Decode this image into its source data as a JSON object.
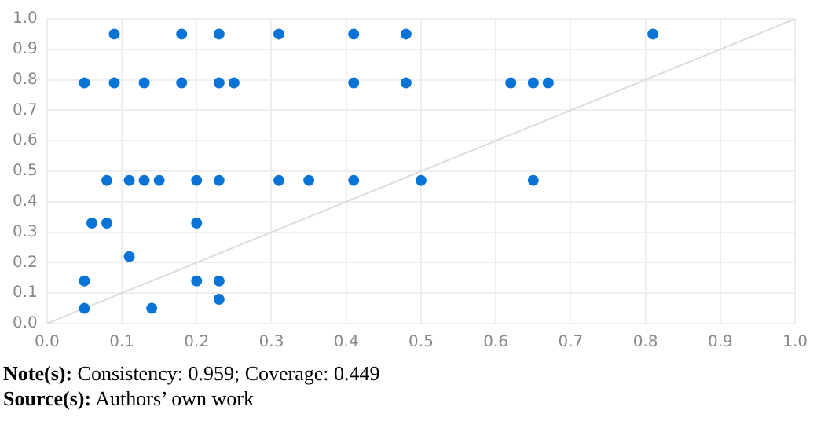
{
  "chart_data": {
    "type": "scatter",
    "series": [
      {
        "marker": "circle",
        "color": "#0a74d6",
        "x": [
          0.09,
          0.18,
          0.23,
          0.31,
          0.41,
          0.48,
          0.81,
          0.05,
          0.09,
          0.13,
          0.18,
          0.23,
          0.25,
          0.41,
          0.48,
          0.62,
          0.65,
          0.67,
          0.08,
          0.11,
          0.13,
          0.15,
          0.2,
          0.23,
          0.31,
          0.35,
          0.41,
          0.5,
          0.65,
          0.06,
          0.08,
          0.2,
          0.11,
          0.05,
          0.2,
          0.23,
          0.23,
          0.05,
          0.14
        ],
        "values": [
          0.95,
          0.95,
          0.95,
          0.95,
          0.95,
          0.95,
          0.95,
          0.79,
          0.79,
          0.79,
          0.79,
          0.79,
          0.79,
          0.79,
          0.79,
          0.79,
          0.79,
          0.79,
          0.47,
          0.47,
          0.47,
          0.47,
          0.47,
          0.47,
          0.47,
          0.47,
          0.47,
          0.47,
          0.47,
          0.33,
          0.33,
          0.33,
          0.22,
          0.14,
          0.14,
          0.14,
          0.08,
          0.05,
          0.05
        ]
      },
      {
        "type": "line",
        "marker": "none",
        "color": "#dddddd",
        "x": [
          0,
          1
        ],
        "values": [
          0,
          1
        ]
      }
    ],
    "xlim": [
      0,
      1
    ],
    "ylim": [
      0,
      1
    ],
    "xticks": [
      {
        "value": 0,
        "label": "0.0"
      },
      {
        "value": 0.1,
        "label": "0.1"
      },
      {
        "value": 0.2,
        "label": "0.2"
      },
      {
        "value": 0.3,
        "label": "0.3"
      },
      {
        "value": 0.4,
        "label": "0.4"
      },
      {
        "value": 0.5,
        "label": "0.5"
      },
      {
        "value": 0.6,
        "label": "0.6"
      },
      {
        "value": 0.7,
        "label": "0.7"
      },
      {
        "value": 0.8,
        "label": "0.8"
      },
      {
        "value": 0.9,
        "label": "0.9"
      },
      {
        "value": 1,
        "label": "1.0"
      }
    ],
    "yticks": [
      {
        "value": 0,
        "label": "0.0"
      },
      {
        "value": 0.1,
        "label": "0.1"
      },
      {
        "value": 0.2,
        "label": "0.2"
      },
      {
        "value": 0.3,
        "label": "0.3"
      },
      {
        "value": 0.4,
        "label": "0.4"
      },
      {
        "value": 0.5,
        "label": "0.5"
      },
      {
        "value": 0.6,
        "label": "0.6"
      },
      {
        "value": 0.7,
        "label": "0.7"
      },
      {
        "value": 0.8,
        "label": "0.8"
      },
      {
        "value": 0.9,
        "label": "0.9"
      },
      {
        "value": 1,
        "label": "1.0"
      }
    ],
    "grid": true,
    "legend": false,
    "annotations": [
      "Note(s): Consistency: 0.959; Coverage: 0.449",
      "Source(s): Authors’ own work"
    ]
  }
}
